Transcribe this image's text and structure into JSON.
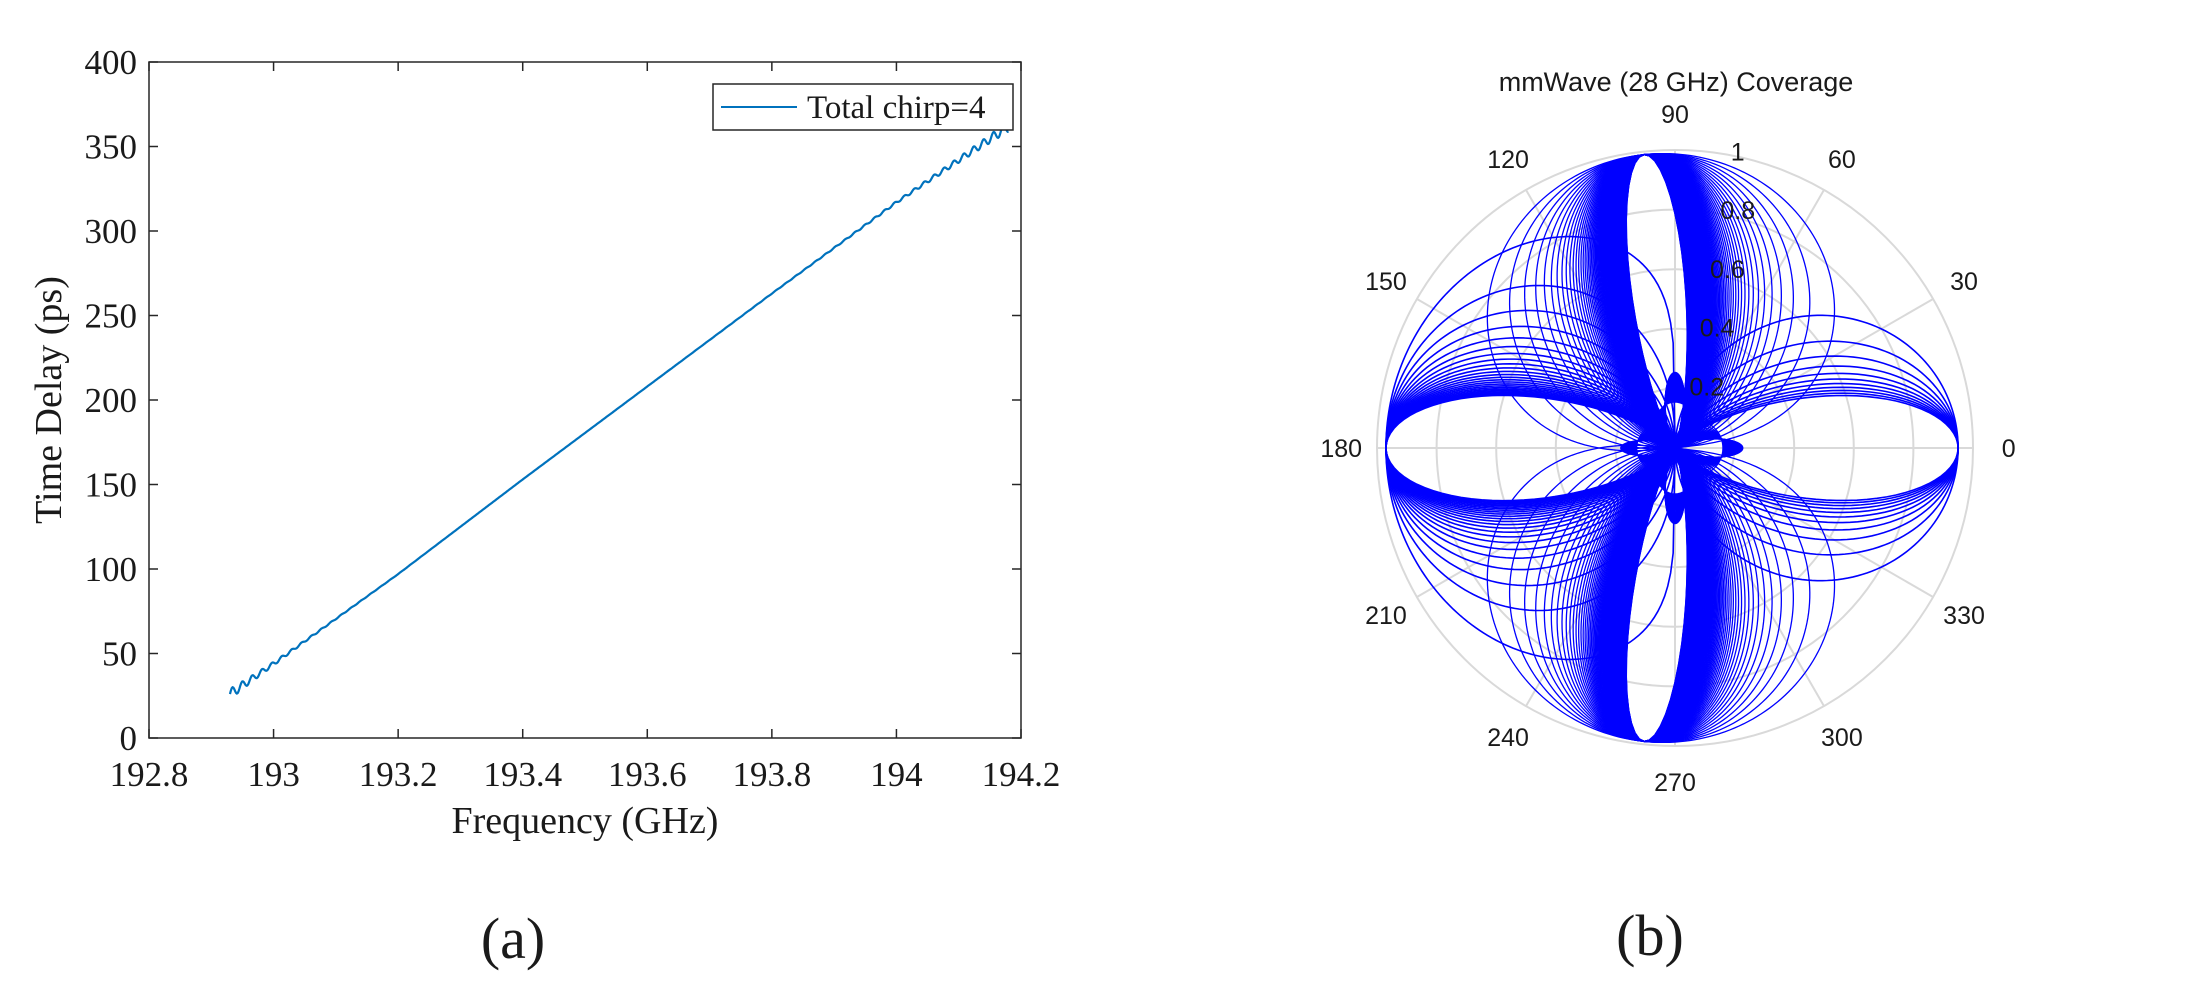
{
  "chart_data": [
    {
      "type": "line",
      "panel_label": "(a)",
      "xlabel": "Frequency (GHz)",
      "ylabel": "Time Delay (ps)",
      "xlim": [
        192.8,
        194.2
      ],
      "ylim": [
        0,
        400
      ],
      "xticks": [
        "192.8",
        "193",
        "193.2",
        "193.4",
        "193.6",
        "193.8",
        "194",
        "194.2"
      ],
      "yticks": [
        "0",
        "50",
        "100",
        "150",
        "200",
        "250",
        "300",
        "350",
        "400"
      ],
      "grid": false,
      "legend_position": "top-right",
      "series": [
        {
          "name": "Total chirp=4",
          "color": "#0072BD",
          "x": [
            192.93,
            193.0,
            193.2,
            193.4,
            193.6,
            193.8,
            194.0,
            194.18
          ],
          "y": [
            26,
            44,
            97,
            153,
            208,
            263,
            317,
            362
          ]
        }
      ]
    },
    {
      "type": "polar",
      "panel_label": "(b)",
      "title": "mmWave (28 GHz) Coverage",
      "angle_ticks": [
        "0",
        "30",
        "60",
        "90",
        "120",
        "150",
        "180",
        "210",
        "240",
        "270",
        "300",
        "330"
      ],
      "radius_ticks": [
        "0.2",
        "0.4",
        "0.6",
        "0.8",
        "1"
      ],
      "rlim": [
        0,
        1
      ],
      "grid": true,
      "color": "#0000FF",
      "patterns": {
        "beam_0deg": {
          "steer_deg": 0,
          "peak_radius": 0.95,
          "curves": 11
        },
        "beam_180deg": {
          "steer_deg": 180,
          "peak_radius": 0.97,
          "curves": 24
        },
        "lobes_90_270deg": {
          "steer_deg": [
            96,
            264
          ],
          "peak_radius": 0.99,
          "curves": 120
        },
        "center_lobes": {
          "peak_radius": 0.27,
          "curves": 40
        }
      }
    }
  ]
}
